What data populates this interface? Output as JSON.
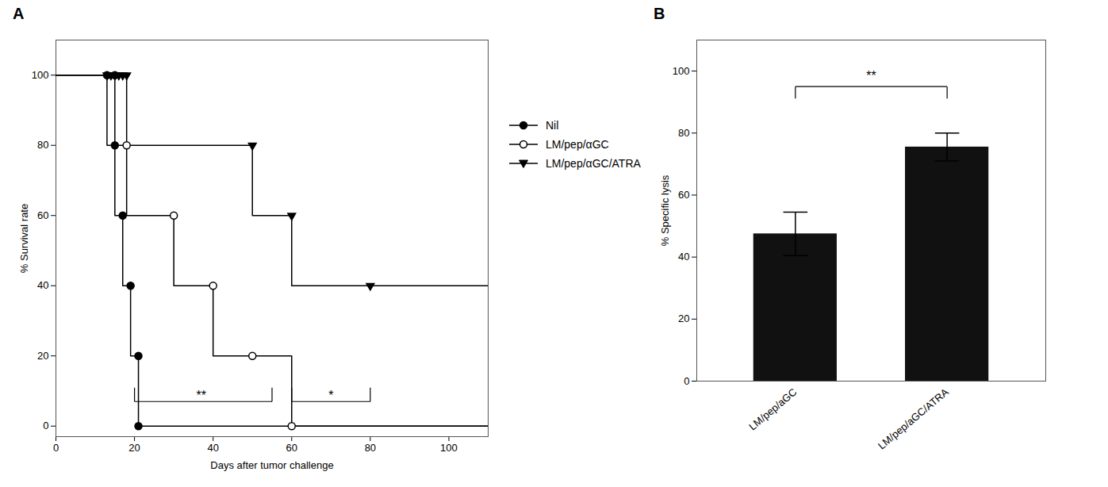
{
  "chart_data": [
    {
      "type": "line",
      "title": "A",
      "xlabel": "Days after tumor challenge",
      "ylabel": "% Survival rate",
      "xlim": [
        0,
        110
      ],
      "ylim": [
        -3,
        110
      ],
      "xticks": [
        0,
        20,
        40,
        60,
        80,
        100
      ],
      "yticks": [
        0,
        20,
        40,
        60,
        80,
        100
      ],
      "legend": "right",
      "series": [
        {
          "name": "Nil",
          "color": "black",
          "marker": "circle",
          "x": [
            0,
            13,
            13,
            15,
            15,
            17,
            17,
            19,
            19,
            21,
            21,
            110
          ],
          "values": [
            100,
            100,
            80,
            80,
            60,
            60,
            40,
            40,
            20,
            20,
            0,
            0
          ],
          "markers_x": [
            13,
            15,
            17,
            19,
            21,
            21
          ],
          "markers_y": [
            100,
            80,
            60,
            40,
            20,
            0
          ]
        },
        {
          "name": "LM/pep/αGC",
          "color": "black",
          "marker": "open_circle",
          "x": [
            0,
            15,
            15,
            18,
            18,
            30,
            30,
            40,
            40,
            50,
            50,
            60,
            60,
            110
          ],
          "values": [
            100,
            100,
            80,
            80,
            60,
            60,
            40,
            40,
            20,
            20,
            20,
            20,
            0,
            0
          ],
          "markers_x": [
            15,
            18,
            30,
            40,
            50,
            60
          ],
          "markers_y": [
            100,
            80,
            60,
            40,
            20,
            0
          ]
        },
        {
          "name": "LM/pep/αGC/ATRA",
          "color": "black",
          "marker": "triangle_down",
          "x": [
            0,
            13,
            13,
            14,
            14,
            15,
            15,
            16,
            16,
            17,
            17,
            18,
            18,
            50,
            50,
            60,
            60,
            80,
            80,
            110
          ],
          "values": [
            100,
            100,
            100,
            100,
            100,
            100,
            100,
            100,
            100,
            100,
            100,
            100,
            80,
            80,
            60,
            60,
            40,
            40,
            40,
            40
          ],
          "markers_x": [
            13,
            14,
            15,
            16,
            17,
            18,
            50,
            60,
            80
          ],
          "markers_y": [
            100,
            100,
            100,
            100,
            100,
            100,
            80,
            60,
            40
          ]
        }
      ],
      "annotations": [
        {
          "text": "**",
          "x1": 20,
          "x2": 55,
          "y": 7,
          "text_x": 37
        },
        {
          "text": "*",
          "x1": 60,
          "x2": 80,
          "y": 7,
          "text_x": 70
        }
      ]
    },
    {
      "type": "bar",
      "title": "B",
      "ylabel": "% Specific lysis",
      "categories": [
        "LM/pep/aGC",
        "LM/pep/aGC/ATRA"
      ],
      "values": [
        47.5,
        75.5
      ],
      "errors": [
        7.0,
        4.5
      ],
      "color": "#111111",
      "ylim": [
        0,
        110
      ],
      "yticks": [
        0,
        20,
        40,
        60,
        80,
        100
      ],
      "annotations": [
        {
          "text": "**",
          "x1": "LM/pep/aGC",
          "x2": "LM/pep/aGC/ATRA",
          "y": 95,
          "text_y": 97
        }
      ]
    }
  ]
}
